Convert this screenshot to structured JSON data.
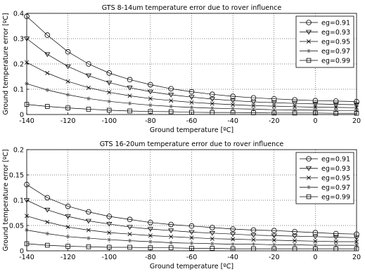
{
  "chart_data": [
    {
      "type": "line",
      "title": "GTS 8-14um temperature error due to rover influence",
      "xlabel": "Ground temperature [ºC]",
      "ylabel": "Ground temperature error [ºC]",
      "xlim": [
        -140,
        20
      ],
      "ylim": [
        0,
        0.4
      ],
      "xticks": [
        "-140",
        "-120",
        "-100",
        "-80",
        "-60",
        "-40",
        "-20",
        "0",
        "20"
      ],
      "yticks": [
        "0",
        "0.1",
        "0.2",
        "0.3",
        "0.4"
      ],
      "grid": true,
      "legend_position": "top-right",
      "x": [
        -140,
        -130,
        -120,
        -110,
        -100,
        -90,
        -80,
        -70,
        -60,
        -50,
        -40,
        -30,
        -20,
        -10,
        0,
        10,
        20
      ],
      "series": [
        {
          "name": "eg=0.91",
          "marker": "circle",
          "values": [
            0.388,
            0.314,
            0.248,
            0.2,
            0.164,
            0.138,
            0.118,
            0.102,
            0.09,
            0.08,
            0.072,
            0.066,
            0.062,
            0.058,
            0.055,
            0.053,
            0.051
          ]
        },
        {
          "name": "eg=0.93",
          "marker": "triangle-down",
          "values": [
            0.3,
            0.238,
            0.19,
            0.154,
            0.126,
            0.106,
            0.09,
            0.078,
            0.069,
            0.061,
            0.055,
            0.05,
            0.047,
            0.044,
            0.042,
            0.04,
            0.039
          ]
        },
        {
          "name": "eg=0.95",
          "marker": "x",
          "values": [
            0.206,
            0.164,
            0.131,
            0.106,
            0.088,
            0.074,
            0.063,
            0.055,
            0.048,
            0.043,
            0.039,
            0.035,
            0.033,
            0.031,
            0.029,
            0.028,
            0.027
          ]
        },
        {
          "name": "eg=0.97",
          "marker": "star",
          "values": [
            0.122,
            0.097,
            0.078,
            0.063,
            0.052,
            0.044,
            0.037,
            0.032,
            0.028,
            0.025,
            0.023,
            0.021,
            0.019,
            0.018,
            0.017,
            0.016,
            0.016
          ]
        },
        {
          "name": "eg=0.99",
          "marker": "square",
          "values": [
            0.04,
            0.032,
            0.026,
            0.021,
            0.017,
            0.014,
            0.012,
            0.011,
            0.009,
            0.008,
            0.008,
            0.007,
            0.006,
            0.006,
            0.006,
            0.005,
            0.005
          ]
        }
      ]
    },
    {
      "type": "line",
      "title": "GTS 16-20um temperature error due to rover influence",
      "xlabel": "Ground temperature [ºC]",
      "ylabel": "Ground temperature error [ºC]",
      "xlim": [
        -140,
        20
      ],
      "ylim": [
        0,
        0.2
      ],
      "xticks": [
        "-140",
        "-120",
        "-100",
        "-80",
        "-60",
        "-40",
        "-20",
        "0",
        "20"
      ],
      "yticks": [
        "0",
        "0.05",
        "0.1",
        "0.15",
        "0.2"
      ],
      "grid": true,
      "legend_position": "top-right",
      "x": [
        -140,
        -130,
        -120,
        -110,
        -100,
        -90,
        -80,
        -70,
        -60,
        -50,
        -40,
        -30,
        -20,
        -10,
        0,
        10,
        20
      ],
      "series": [
        {
          "name": "eg=0.91",
          "marker": "circle",
          "values": [
            0.131,
            0.105,
            0.088,
            0.077,
            0.068,
            0.062,
            0.056,
            0.052,
            0.049,
            0.046,
            0.043,
            0.041,
            0.04,
            0.038,
            0.036,
            0.034,
            0.033
          ]
        },
        {
          "name": "eg=0.93",
          "marker": "triangle-down",
          "values": [
            0.1,
            0.081,
            0.068,
            0.059,
            0.053,
            0.047,
            0.043,
            0.04,
            0.037,
            0.035,
            0.033,
            0.031,
            0.03,
            0.029,
            0.028,
            0.027,
            0.026
          ]
        },
        {
          "name": "eg=0.95",
          "marker": "x",
          "values": [
            0.069,
            0.057,
            0.047,
            0.041,
            0.036,
            0.033,
            0.03,
            0.028,
            0.026,
            0.024,
            0.023,
            0.022,
            0.021,
            0.02,
            0.019,
            0.018,
            0.018
          ]
        },
        {
          "name": "eg=0.97",
          "marker": "star",
          "values": [
            0.041,
            0.034,
            0.028,
            0.025,
            0.022,
            0.02,
            0.018,
            0.016,
            0.015,
            0.014,
            0.013,
            0.013,
            0.012,
            0.012,
            0.011,
            0.011,
            0.011
          ]
        },
        {
          "name": "eg=0.99",
          "marker": "square",
          "values": [
            0.014,
            0.011,
            0.009,
            0.008,
            0.007,
            0.007,
            0.006,
            0.006,
            0.005,
            0.005,
            0.004,
            0.004,
            0.004,
            0.004,
            0.004,
            0.004,
            0.004
          ]
        }
      ]
    }
  ]
}
